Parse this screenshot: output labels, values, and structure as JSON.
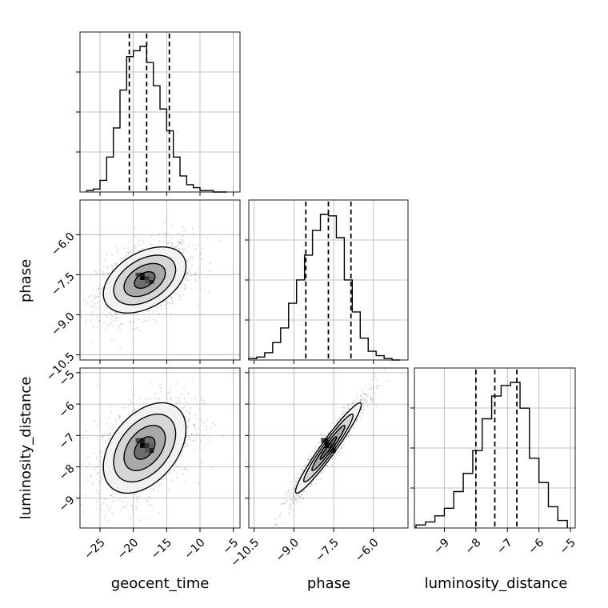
{
  "chart_data": {
    "type": "corner",
    "title": "",
    "parameters": [
      "geocent_time",
      "phase",
      "luminosity_distance"
    ],
    "axis_labels": {
      "geocent_time": "geocent_time",
      "phase": "phase",
      "luminosity_distance": "luminosity_distance"
    },
    "ranges": {
      "geocent_time": [
        -28.0,
        -4.0
      ],
      "phase": [
        -10.7,
        -4.7
      ],
      "luminosity_distance": [
        -9.95,
        -4.85
      ]
    },
    "ticks": {
      "geocent_time": [
        -25,
        -20,
        -15,
        -10,
        -5
      ],
      "phase": [
        -10.5,
        -9.0,
        -7.5,
        -6.0
      ],
      "phase_row": [
        -6.0,
        -7.5,
        -9.0,
        -10.5
      ],
      "luminosity_distance": [
        -9,
        -8,
        -7,
        -6,
        -5
      ],
      "luminosity_distance_row": [
        -5,
        -6,
        -7,
        -8,
        -9
      ]
    },
    "tick_labels": {
      "geocent_time": [
        "−25",
        "−20",
        "−15",
        "−10",
        "−5"
      ],
      "phase": [
        "−10.5",
        "−9.0",
        "−7.5",
        "−6.0"
      ],
      "phase_row": [
        "−6.0",
        "−7.5",
        "−9.0",
        "−10.5"
      ],
      "luminosity_distance": [
        "−9",
        "−8",
        "−7",
        "−6",
        "−5"
      ],
      "luminosity_distance_row": [
        "−5",
        "−6",
        "−7",
        "−8",
        "−9"
      ]
    },
    "quantiles": {
      "geocent_time": [
        -20.6,
        -18.0,
        -14.6
      ],
      "phase": [
        -8.55,
        -7.7,
        -6.85
      ],
      "luminosity_distance": [
        -8.0,
        -7.4,
        -6.7
      ]
    },
    "histograms": {
      "geocent_time": {
        "edges": [
          -27,
          -26,
          -25,
          -24,
          -23,
          -22,
          -21,
          -20,
          -19,
          -18,
          -17,
          -16,
          -15,
          -14,
          -13,
          -12,
          -11,
          -10,
          -9,
          -8,
          -7,
          -6
        ],
        "counts": [
          1,
          2,
          8,
          24,
          44,
          70,
          93,
          97,
          100,
          89,
          73,
          57,
          42,
          24,
          11,
          5,
          3,
          1,
          1,
          0,
          0
        ]
      },
      "phase": {
        "edges": [
          -10.7,
          -10.4,
          -10.1,
          -9.8,
          -9.5,
          -9.2,
          -8.9,
          -8.6,
          -8.3,
          -8.0,
          -7.7,
          -7.4,
          -7.1,
          -6.8,
          -6.5,
          -6.2,
          -5.9,
          -5.6,
          -5.3,
          -5.0
        ],
        "counts": [
          1,
          2,
          5,
          12,
          22,
          39,
          55,
          72,
          89,
          100,
          99,
          84,
          55,
          33,
          15,
          6,
          3,
          1,
          0
        ]
      },
      "luminosity_distance": {
        "edges": [
          -9.9,
          -9.6,
          -9.3,
          -9.0,
          -8.7,
          -8.4,
          -8.1,
          -7.8,
          -7.5,
          -7.2,
          -6.9,
          -6.6,
          -6.3,
          -6.0,
          -5.7,
          -5.4,
          -5.1
        ],
        "counts": [
          2,
          4,
          8,
          13,
          24,
          36,
          51,
          72,
          87,
          94,
          96,
          79,
          46,
          30,
          14,
          5
        ]
      }
    },
    "pairs": [
      {
        "x": "geocent_time",
        "y": "phase",
        "mean": [
          -18.3,
          -7.7
        ],
        "sd": [
          3.1,
          0.62
        ],
        "corr": 0.42
      },
      {
        "x": "geocent_time",
        "y": "luminosity_distance",
        "mean": [
          -18.3,
          -7.4
        ],
        "sd": [
          3.1,
          0.72
        ],
        "corr": 0.42
      },
      {
        "x": "phase",
        "y": "luminosity_distance",
        "mean": [
          -7.7,
          -7.4
        ],
        "sd": [
          0.62,
          0.72
        ],
        "corr": 0.96
      }
    ],
    "contour_levels_sigma": [
      0.5,
      1.0,
      1.5,
      2.0
    ],
    "colors": {
      "line": "#000000",
      "grid": "#b0b0b0",
      "points": "#7f7f7f"
    },
    "grid": true,
    "legend": "none"
  }
}
